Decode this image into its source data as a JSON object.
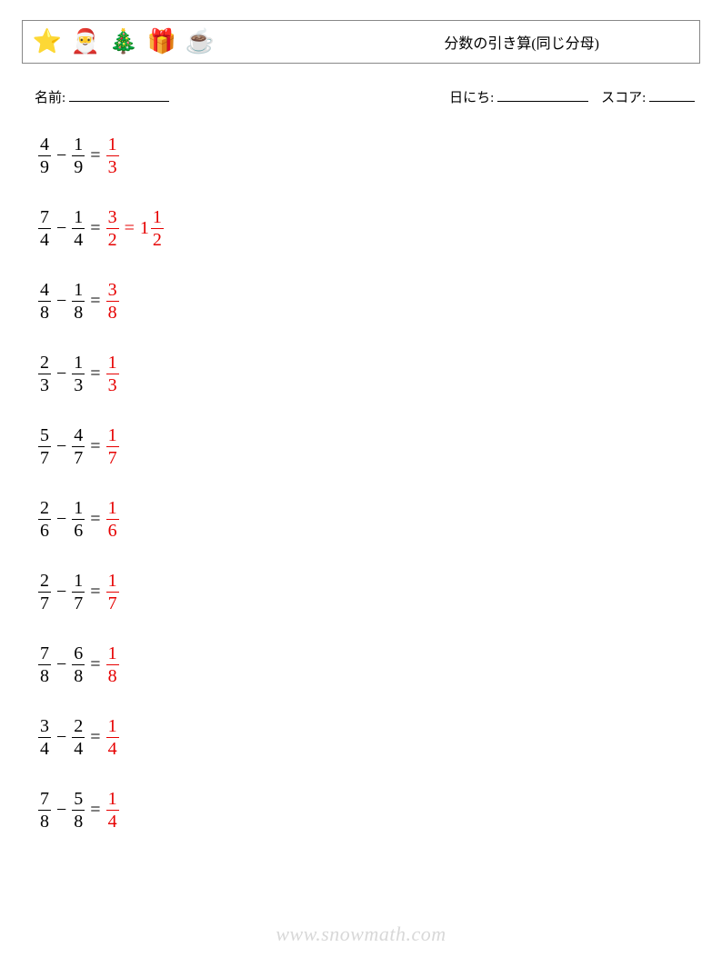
{
  "header": {
    "title": "分数の引き算(同じ分母)",
    "icons": [
      "⭐",
      "🎅",
      "🎄",
      "🎁",
      "☕"
    ]
  },
  "info": {
    "name_label": "名前:",
    "date_label": "日にち:",
    "score_label": "スコア:",
    "name_underline_width": 110,
    "date_underline_width": 100,
    "score_underline_width": 50
  },
  "colors": {
    "text": "#000000",
    "answer": "#e60000",
    "footer": "#d8d8d8",
    "border": "#888888"
  },
  "font": {
    "problem_size": 20,
    "title_size": 16,
    "info_size": 15
  },
  "problems": [
    {
      "a": {
        "n": 4,
        "d": 9
      },
      "b": {
        "n": 1,
        "d": 9
      },
      "ans": [
        {
          "n": 1,
          "d": 3
        }
      ]
    },
    {
      "a": {
        "n": 7,
        "d": 4
      },
      "b": {
        "n": 1,
        "d": 4
      },
      "ans": [
        {
          "n": 3,
          "d": 2
        },
        {
          "whole": 1,
          "n": 1,
          "d": 2
        }
      ]
    },
    {
      "a": {
        "n": 4,
        "d": 8
      },
      "b": {
        "n": 1,
        "d": 8
      },
      "ans": [
        {
          "n": 3,
          "d": 8
        }
      ]
    },
    {
      "a": {
        "n": 2,
        "d": 3
      },
      "b": {
        "n": 1,
        "d": 3
      },
      "ans": [
        {
          "n": 1,
          "d": 3
        }
      ]
    },
    {
      "a": {
        "n": 5,
        "d": 7
      },
      "b": {
        "n": 4,
        "d": 7
      },
      "ans": [
        {
          "n": 1,
          "d": 7
        }
      ]
    },
    {
      "a": {
        "n": 2,
        "d": 6
      },
      "b": {
        "n": 1,
        "d": 6
      },
      "ans": [
        {
          "n": 1,
          "d": 6
        }
      ]
    },
    {
      "a": {
        "n": 2,
        "d": 7
      },
      "b": {
        "n": 1,
        "d": 7
      },
      "ans": [
        {
          "n": 1,
          "d": 7
        }
      ]
    },
    {
      "a": {
        "n": 7,
        "d": 8
      },
      "b": {
        "n": 6,
        "d": 8
      },
      "ans": [
        {
          "n": 1,
          "d": 8
        }
      ]
    },
    {
      "a": {
        "n": 3,
        "d": 4
      },
      "b": {
        "n": 2,
        "d": 4
      },
      "ans": [
        {
          "n": 1,
          "d": 4
        }
      ]
    },
    {
      "a": {
        "n": 7,
        "d": 8
      },
      "b": {
        "n": 5,
        "d": 8
      },
      "ans": [
        {
          "n": 1,
          "d": 4
        }
      ]
    }
  ],
  "footer": "www.snowmath.com"
}
